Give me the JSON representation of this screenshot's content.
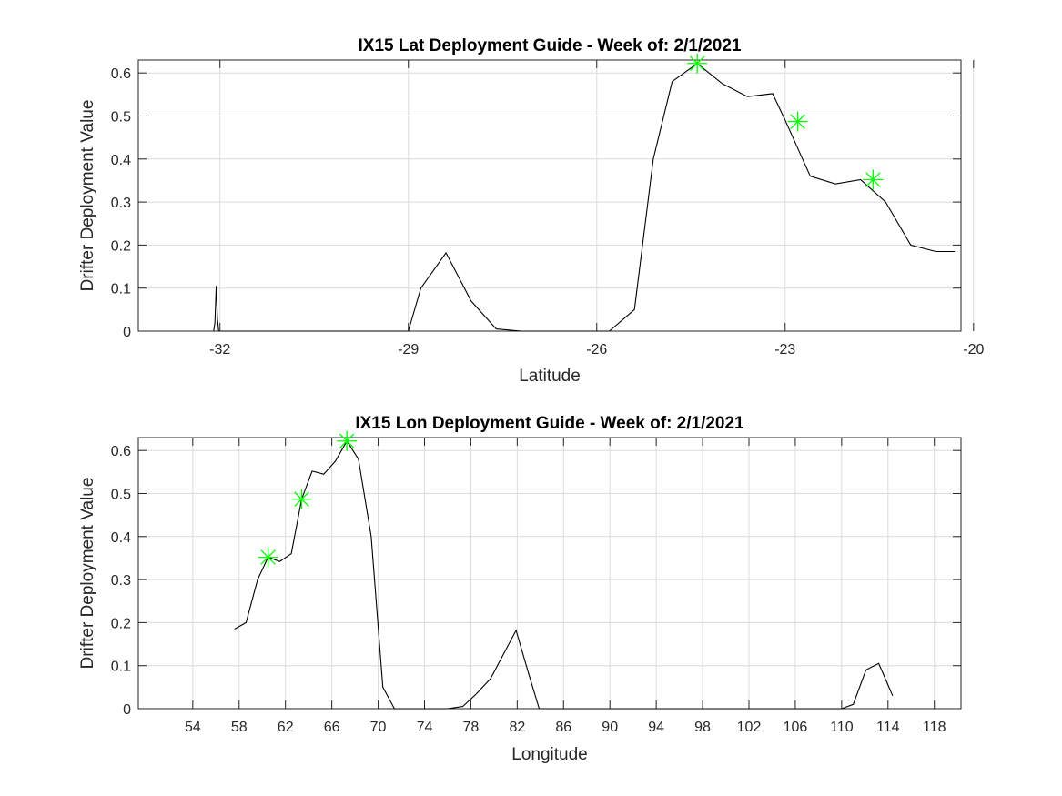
{
  "chart_data": [
    {
      "type": "line",
      "title": "IX15 Lat Deployment Guide - Week of: 2/1/2021",
      "xlabel": "Latitude",
      "ylabel": "Drifter Deployment Value",
      "xlim": [
        -33.3,
        -20.2
      ],
      "ylim": [
        0,
        0.63
      ],
      "xticks": [
        -32,
        -29,
        -26,
        -23,
        -20
      ],
      "xtick_labels": [
        "-32",
        "-29",
        "-26",
        "-23",
        "-20"
      ],
      "yticks": [
        0,
        0.1,
        0.2,
        0.3,
        0.4,
        0.5,
        0.6
      ],
      "ytick_labels": [
        "0",
        "0.1",
        "0.2",
        "0.3",
        "0.4",
        "0.5",
        "0.6"
      ],
      "grid": true,
      "series": [
        {
          "color": "#000000",
          "x": [
            -32.1,
            -32.08,
            -32.06,
            -32.04,
            -32.02,
            -32.0,
            -31.0,
            -30.0,
            -29.2,
            -29.0,
            -28.8,
            -28.4,
            -28.0,
            -27.6,
            -27.2,
            -26.8,
            -26.4,
            -26.0,
            -25.8,
            -25.4,
            -25.1,
            -24.8,
            -24.4,
            -24.0,
            -23.6,
            -23.2,
            -23.0,
            -22.6,
            -22.2,
            -21.8,
            -21.4,
            -21.0,
            -20.6,
            -20.3
          ],
          "y": [
            0.0,
            0.02,
            0.105,
            0.03,
            0.0,
            0.0,
            0.0,
            0.0,
            0.0,
            0.0,
            0.1,
            0.182,
            0.07,
            0.005,
            0.0,
            0.0,
            0.0,
            0.0,
            0.0,
            0.05,
            0.4,
            0.58,
            0.622,
            0.575,
            0.545,
            0.552,
            0.49,
            0.36,
            0.342,
            0.352,
            0.3,
            0.2,
            0.185,
            0.185
          ]
        }
      ],
      "markers": {
        "color": "#00ff00",
        "symbol": "asterisk",
        "x": [
          -24.4,
          -22.8,
          -21.6
        ],
        "y": [
          0.622,
          0.487,
          0.352
        ]
      }
    },
    {
      "type": "line",
      "title": "IX15 Lon Deployment Guide - Week of: 2/1/2021",
      "xlabel": "Longitude",
      "ylabel": "Drifter Deployment Value",
      "xlim": [
        49.3,
        120.3
      ],
      "ylim": [
        0,
        0.63
      ],
      "xticks": [
        54,
        58,
        62,
        66,
        70,
        74,
        78,
        82,
        86,
        90,
        94,
        98,
        102,
        106,
        110,
        114,
        118
      ],
      "xtick_labels": [
        "54",
        "58",
        "62",
        "66",
        "70",
        "74",
        "78",
        "82",
        "86",
        "90",
        "94",
        "98",
        "102",
        "106",
        "110",
        "114",
        "118"
      ],
      "yticks": [
        0,
        0.1,
        0.2,
        0.3,
        0.4,
        0.5,
        0.6
      ],
      "ytick_labels": [
        "0",
        "0.1",
        "0.2",
        "0.3",
        "0.4",
        "0.5",
        "0.6"
      ],
      "grid": true,
      "series": [
        {
          "color": "#000000",
          "x": [
            57.6,
            58.6,
            59.6,
            60.5,
            61.5,
            62.5,
            63.4,
            64.3,
            65.3,
            66.3,
            67.3,
            68.3,
            69.4,
            70.4,
            71.4,
            72.5,
            74.0,
            76.0,
            77.3,
            78.5,
            79.7,
            81.9,
            83.0,
            83.9,
            86.0,
            90.0,
            94.0,
            98.0,
            102.0,
            106.0,
            110.0,
            111.0,
            112.1,
            113.2,
            114.4
          ],
          "y": [
            0.185,
            0.2,
            0.3,
            0.352,
            0.342,
            0.36,
            0.487,
            0.552,
            0.545,
            0.575,
            0.622,
            0.58,
            0.4,
            0.05,
            0.0,
            0.0,
            0.0,
            0.0,
            0.005,
            0.035,
            0.07,
            0.182,
            0.08,
            0.0,
            0.0,
            0.0,
            0.0,
            0.0,
            0.0,
            0.0,
            0.0,
            0.01,
            0.09,
            0.105,
            0.03
          ]
        }
      ],
      "markers": {
        "color": "#00ff00",
        "symbol": "asterisk",
        "x": [
          60.5,
          63.4,
          67.3
        ],
        "y": [
          0.352,
          0.487,
          0.622
        ]
      }
    }
  ]
}
